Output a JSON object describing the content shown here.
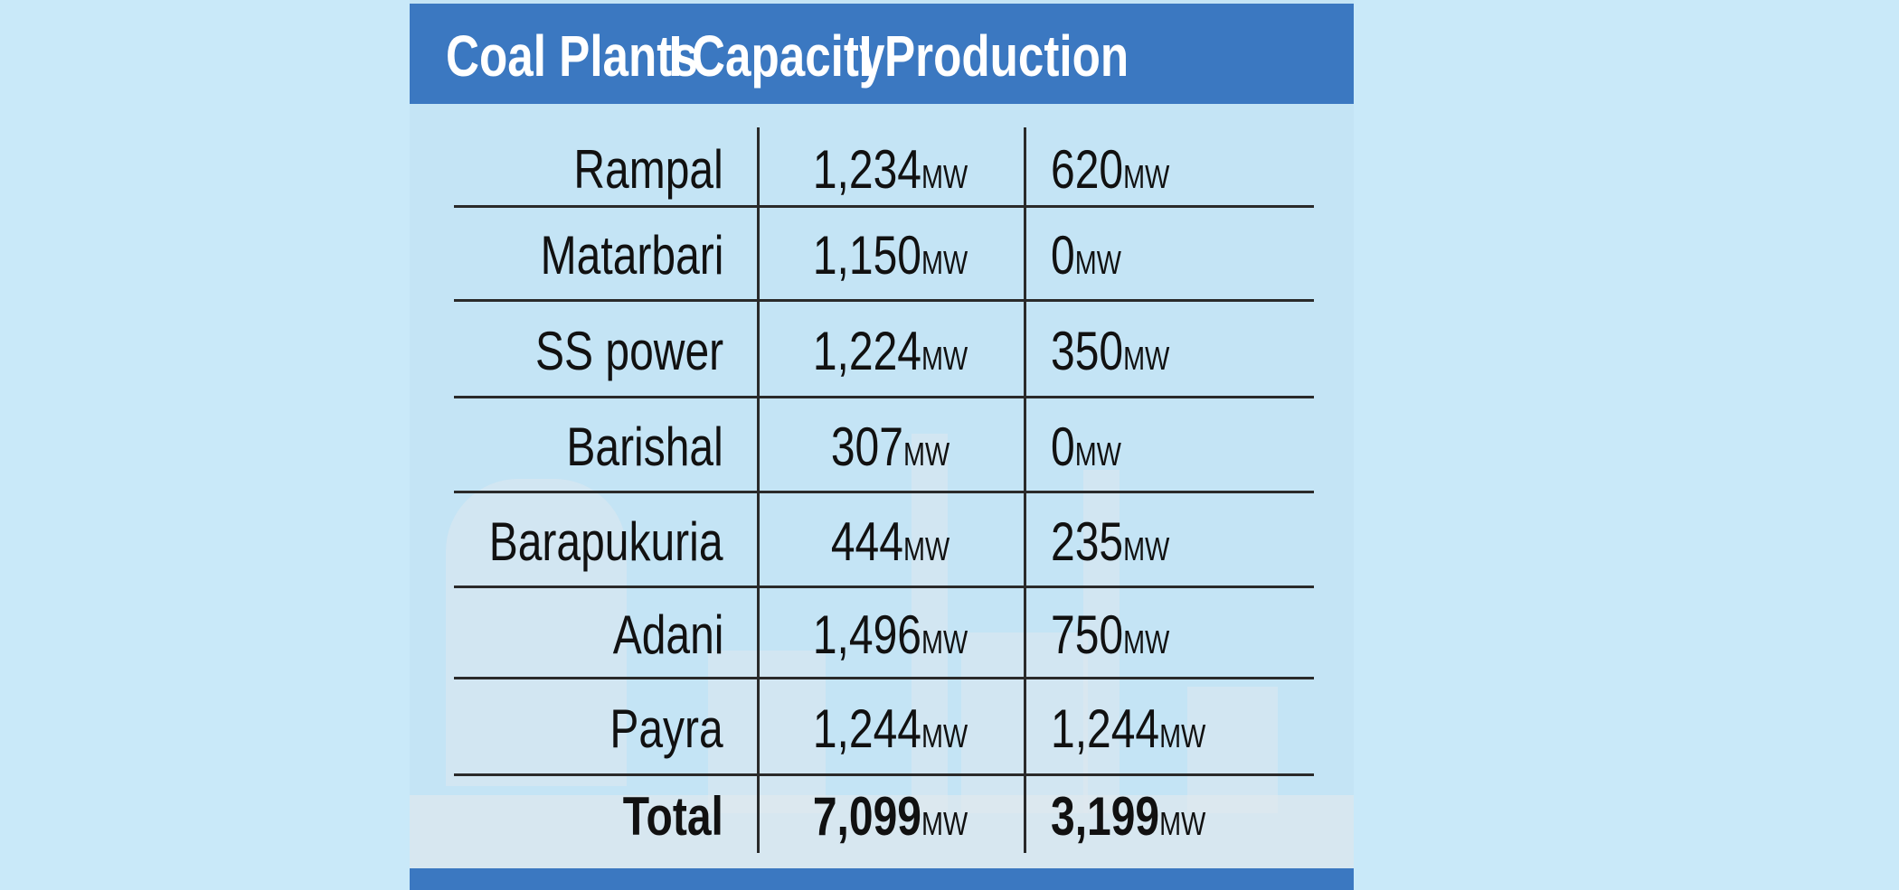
{
  "header": {
    "columns": [
      "Coal Plants",
      "Capacity",
      "Production"
    ]
  },
  "table": {
    "rows": [
      {
        "plant": "Rampal",
        "capacity": {
          "value": "1,234",
          "unit": "MW"
        },
        "production": {
          "value": "620",
          "unit": "MW"
        }
      },
      {
        "plant": "Matarbari",
        "capacity": {
          "value": "1,150",
          "unit": "MW"
        },
        "production": {
          "value": "0",
          "unit": "MW"
        }
      },
      {
        "plant": "SS power",
        "capacity": {
          "value": "1,224",
          "unit": "MW"
        },
        "production": {
          "value": "350",
          "unit": "MW"
        }
      },
      {
        "plant": "Barishal",
        "capacity": {
          "value": "307",
          "unit": "MW"
        },
        "production": {
          "value": "0",
          "unit": "MW"
        }
      },
      {
        "plant": "Barapukuria",
        "capacity": {
          "value": "444",
          "unit": "MW"
        },
        "production": {
          "value": "235",
          "unit": "MW"
        }
      },
      {
        "plant": "Adani",
        "capacity": {
          "value": "1,496",
          "unit": "MW"
        },
        "production": {
          "value": "750",
          "unit": "MW"
        }
      },
      {
        "plant": "Payra",
        "capacity": {
          "value": "1,244",
          "unit": "MW"
        },
        "production": {
          "value": "1,244",
          "unit": "MW"
        }
      }
    ],
    "total": {
      "plant": "Total",
      "capacity": {
        "value": "7,099",
        "unit": "MW"
      },
      "production": {
        "value": "3,199",
        "unit": "MW"
      }
    }
  }
}
